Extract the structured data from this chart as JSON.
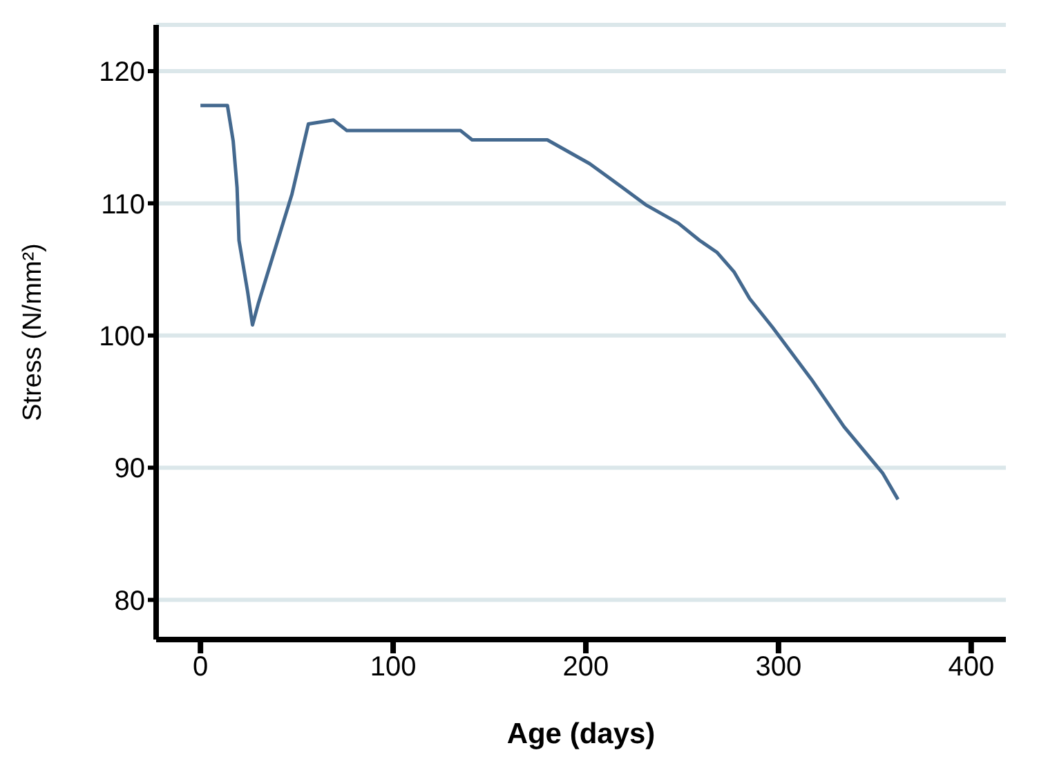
{
  "chart_data": {
    "type": "line",
    "xlabel": "Age (days)",
    "ylabel": "Stress (N/mm²)",
    "x": [
      0,
      14,
      17,
      19,
      20,
      24.5,
      27,
      30,
      47.5,
      56,
      69,
      76,
      135,
      141,
      180,
      202,
      219,
      231,
      248,
      259,
      268,
      277,
      285,
      297,
      317,
      334,
      354,
      362
    ],
    "series": [
      {
        "color": "#44698f",
        "values": [
          117.4,
          117.4,
          114.7,
          111.2,
          107.2,
          103.3,
          100.8,
          102.4,
          110.7,
          116,
          116.3,
          115.5,
          115.5,
          114.8,
          114.8,
          113,
          111.2,
          109.9,
          108.5,
          107.2,
          106.3,
          104.8,
          102.8,
          100.6,
          96.7,
          93.1,
          89.6,
          87.6
        ]
      }
    ],
    "xlim": [
      -23,
      418
    ],
    "xticks": [
      0,
      100,
      200,
      300,
      400
    ],
    "ylim": [
      77,
      123.5
    ],
    "yticks": [
      80,
      90,
      100,
      110,
      120
    ],
    "grid": "y",
    "marker": "none",
    "line_style": "solid"
  }
}
